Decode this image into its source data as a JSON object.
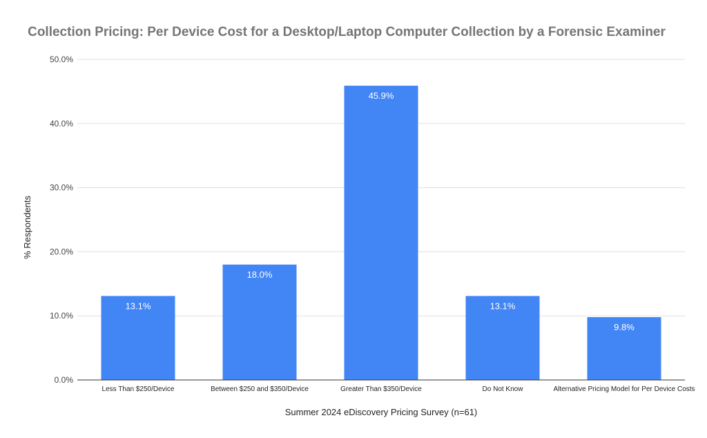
{
  "chart_data": {
    "type": "bar",
    "title": "Collection Pricing: Per Device Cost for a Desktop/Laptop Computer Collection by a Forensic Examiner",
    "xlabel": "Summer 2024 eDiscovery Pricing Survey (n=61)",
    "ylabel": "% Respondents",
    "categories": [
      "Less Than $250/Device",
      "Between $250 and $350/Device",
      "Greater Than $350/Device",
      "Do Not Know",
      "Alternative Pricing Model for Per Device Costs"
    ],
    "values": [
      13.1,
      18.0,
      45.9,
      13.1,
      9.8
    ],
    "data_labels": [
      "13.1%",
      "18.0%",
      "45.9%",
      "13.1%",
      "9.8%"
    ],
    "ylim": [
      0,
      50
    ],
    "yticks": [
      0,
      10,
      20,
      30,
      40,
      50
    ],
    "ytick_labels": [
      "0.0%",
      "10.0%",
      "20.0%",
      "30.0%",
      "40.0%",
      "50.0%"
    ],
    "bar_color": "#4285f4",
    "grid": true,
    "legend": "none"
  }
}
